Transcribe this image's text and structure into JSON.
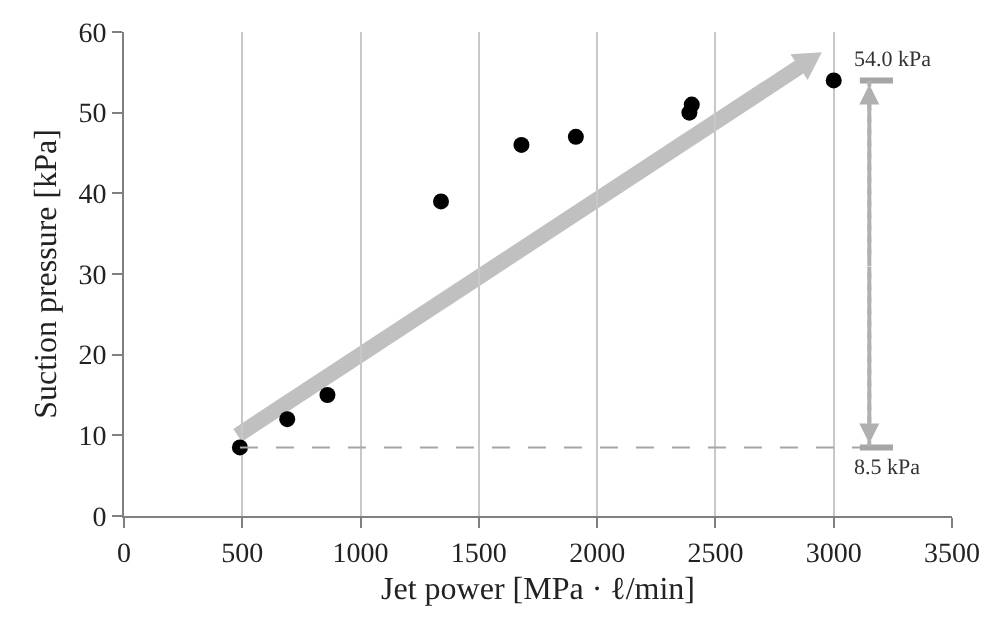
{
  "chart_data": {
    "type": "scatter",
    "xlabel": "Jet power [MPa · ℓ/min]",
    "ylabel": "Suction pressure [kPa]",
    "x": [
      490,
      690,
      860,
      1340,
      1680,
      1910,
      2390,
      2400,
      3000
    ],
    "values": [
      8.5,
      12,
      15,
      39,
      46,
      47,
      50,
      51,
      54
    ],
    "color": "#000000",
    "marker": "circle",
    "xlim": [
      0,
      3500
    ],
    "xticks": [
      0,
      500,
      1000,
      1500,
      2000,
      2500,
      3000,
      3500
    ],
    "ylim": [
      0,
      60
    ],
    "yticks": [
      0,
      10,
      20,
      30,
      40,
      50,
      60
    ],
    "grid": "x",
    "ref_lines": [
      {
        "axis": "y",
        "value": 8.5,
        "label": null,
        "color": "#a6a6a6",
        "line_style": "dashed"
      }
    ],
    "annotations": [
      {
        "text": "54.0 kPa",
        "x": 3000,
        "y": 54
      },
      {
        "text": "8.5 kPa",
        "x": 3000,
        "y": 8.5
      }
    ]
  }
}
